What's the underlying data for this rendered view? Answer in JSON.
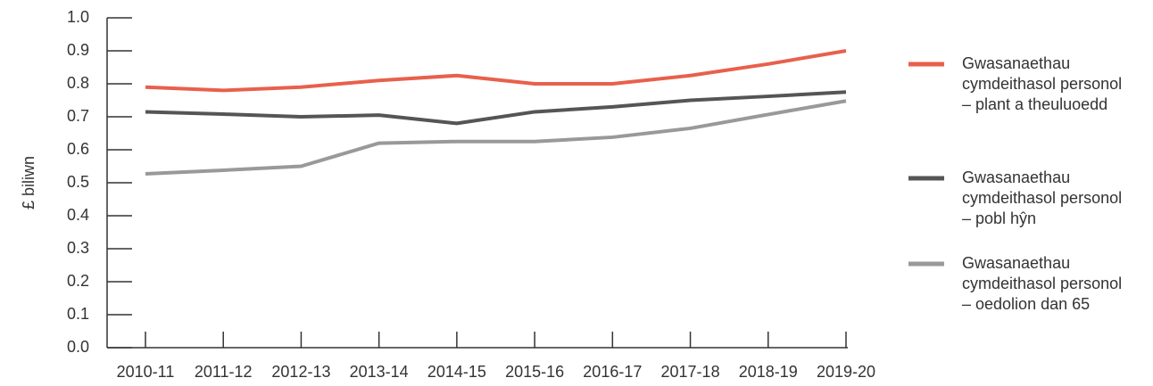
{
  "chart_data": {
    "type": "line",
    "y_label": "£ biliwn",
    "categories": [
      "2010-11",
      "2011-12",
      "2012-13",
      "2013-14",
      "2014-15",
      "2015-16",
      "2016-17",
      "2017-18",
      "2018-19",
      "2019-20"
    ],
    "series": [
      {
        "name": "Gwasanaethau cymdeithasol personol – plant a theuluoedd",
        "color": "#e8604c",
        "values": [
          0.79,
          0.78,
          0.79,
          0.81,
          0.825,
          0.8,
          0.8,
          0.825,
          0.86,
          0.9
        ]
      },
      {
        "name": "Gwasanaethau cymdeithasol personol – pobl hŷn",
        "color": "#555555",
        "values": [
          0.715,
          0.708,
          0.7,
          0.705,
          0.68,
          0.715,
          0.73,
          0.75,
          0.762,
          0.775
        ]
      },
      {
        "name": "Gwasanaethau cymdeithasol personol – oedolion dan 65",
        "color": "#999999",
        "values": [
          0.527,
          0.538,
          0.55,
          0.62,
          0.625,
          0.625,
          0.638,
          0.665,
          0.707,
          0.748
        ]
      }
    ],
    "ylim": [
      0,
      1
    ],
    "yticks": [
      {
        "value": 0,
        "label": "0.0"
      },
      0.1,
      0.2,
      0.3,
      0.4,
      0.5,
      0.6,
      0.7,
      0.8,
      0.9,
      {
        "value": 1,
        "label": "1.0"
      }
    ],
    "legend": "right"
  }
}
